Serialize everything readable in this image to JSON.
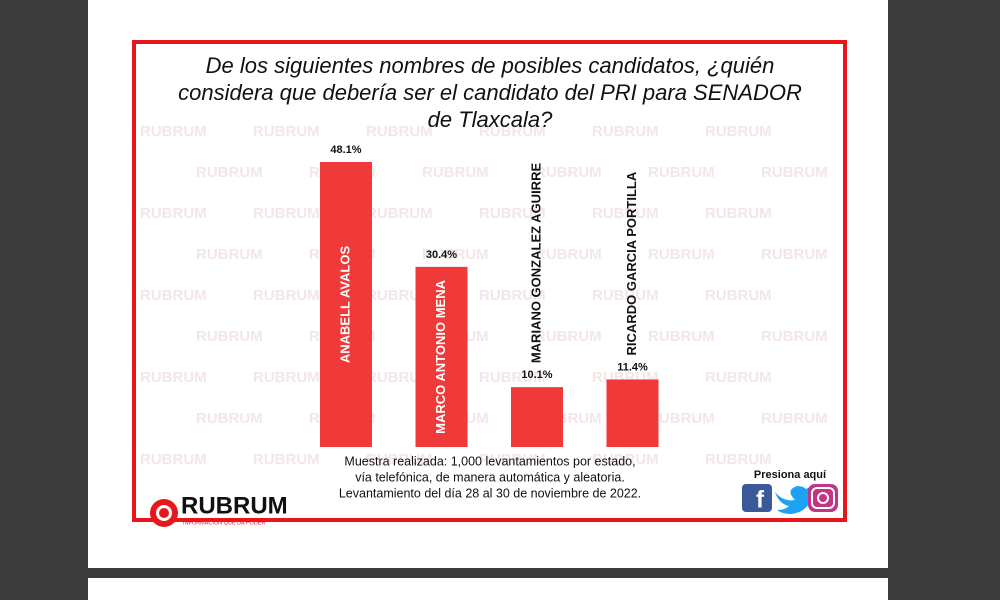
{
  "chart_data": {
    "type": "bar",
    "title": "De los siguientes nombres de posibles candidatos, ¿quién considera que debería ser el candidato del PRI para SENADOR de Tlaxcala?",
    "categories": [
      "ANABELL AVALOS",
      "MARCO ANTONIO MENA",
      "MARIANO GONZALEZ AGUIRRE",
      "RICARDO GARCIA PORTILLA"
    ],
    "values": [
      48.1,
      30.4,
      10.1,
      11.4
    ],
    "value_labels": [
      "48.1%",
      "30.4%",
      "10.1%",
      "11.4%"
    ],
    "color": "#f03a3a",
    "note": [
      "Muestra realizada: 1,000 levantamientos por estado,",
      "vía telefónica, de manera automática y aleatoria.",
      "Levantamiento del día 28 al 30 de noviembre de 2022."
    ]
  },
  "logo": {
    "name": "RUBRUM",
    "tagline": "INFORMACIÓN QUE DA PODER"
  },
  "social": {
    "label": "Presiona aquí"
  }
}
